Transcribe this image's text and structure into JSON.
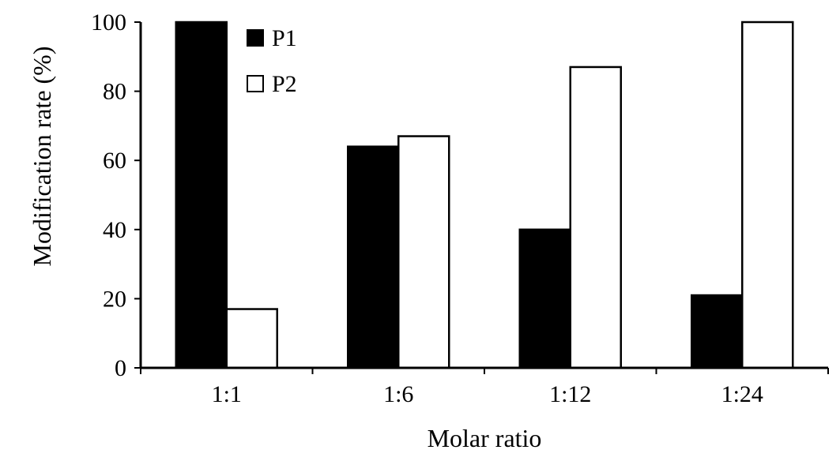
{
  "chart_data": {
    "type": "bar",
    "title": "",
    "xlabel": "Molar ratio",
    "ylabel": "Modification rate (%)",
    "ylim": [
      0,
      100
    ],
    "yticks": [
      0,
      20,
      40,
      60,
      80,
      100
    ],
    "categories": [
      "1:1",
      "1:6",
      "1:12",
      "1:24"
    ],
    "series": [
      {
        "name": "P1",
        "values": [
          100,
          64,
          40,
          21
        ],
        "color": "#000000"
      },
      {
        "name": "P2",
        "values": [
          17,
          67,
          87,
          100
        ],
        "color": "#ffffff"
      }
    ],
    "legend": "top-left",
    "grid": false
  }
}
